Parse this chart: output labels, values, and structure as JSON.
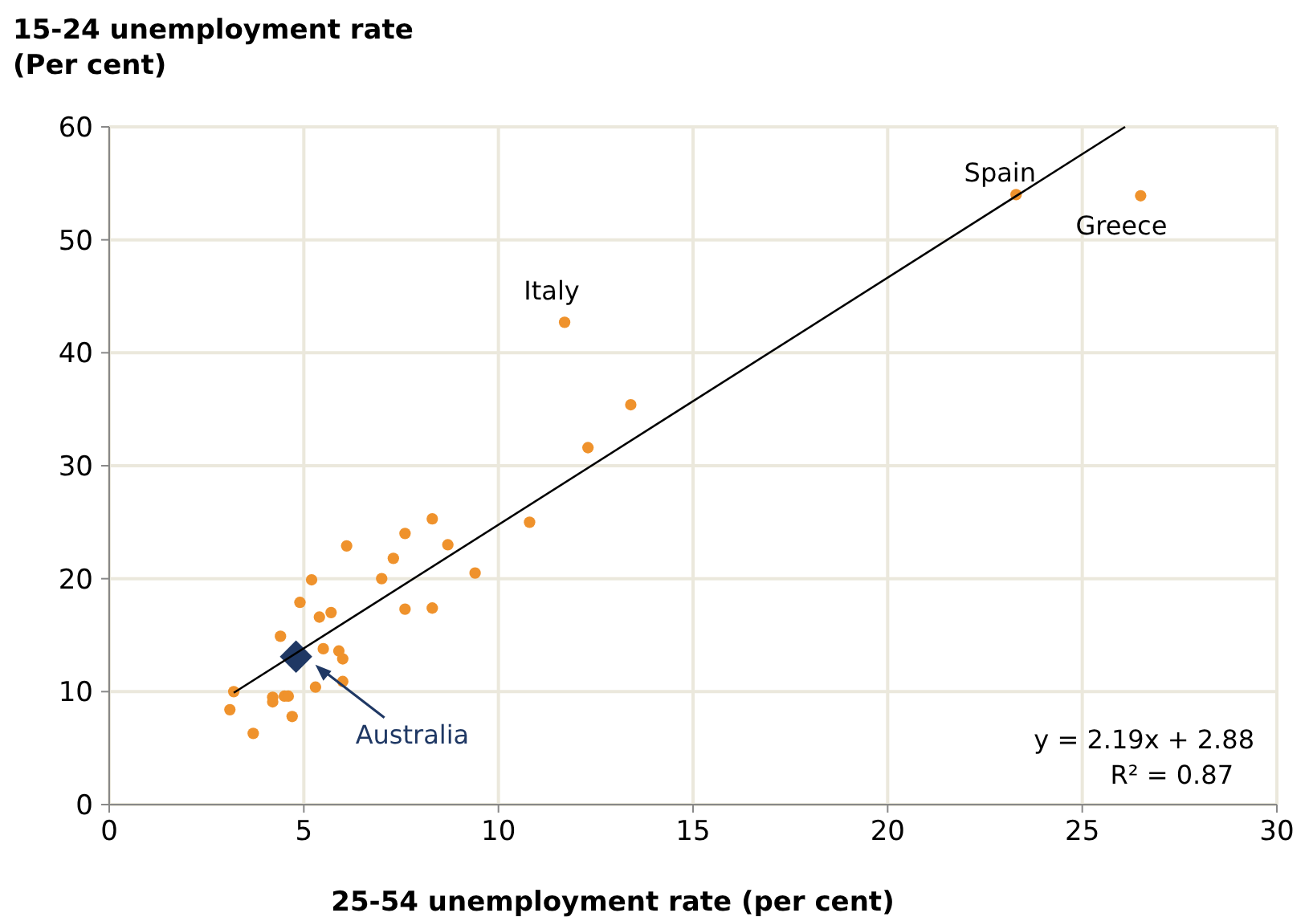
{
  "chart_data": {
    "type": "scatter",
    "ylabel": "15-24 unemployment rate\n(Per cent)",
    "xlabel": "25-54 unemployment rate (per cent)",
    "xlim": [
      0,
      30
    ],
    "xticks": [
      0,
      5,
      10,
      15,
      20,
      25,
      30
    ],
    "ylim": [
      0,
      60
    ],
    "yticks": [
      0,
      10,
      20,
      30,
      40,
      50,
      60
    ],
    "grid": true,
    "series": [
      {
        "color": "#ef922c",
        "marker": "circle",
        "x": [
          3.2,
          3.1,
          3.7,
          4.4,
          4.2,
          4.2,
          4.5,
          4.6,
          4.7,
          4.9,
          5.2,
          5.4,
          5.7,
          5.5,
          5.9,
          6.0,
          6.0,
          5.3,
          6.1,
          7.0,
          7.3,
          7.6,
          8.3,
          8.7,
          7.6,
          8.3,
          9.4,
          10.8,
          11.7,
          13.4,
          12.3,
          23.3,
          26.5
        ],
        "values": [
          10.0,
          8.4,
          6.3,
          14.9,
          9.5,
          9.1,
          9.6,
          9.6,
          7.8,
          17.9,
          19.9,
          16.6,
          17.0,
          13.8,
          13.6,
          12.9,
          10.9,
          10.4,
          22.9,
          20.0,
          21.8,
          24.0,
          25.3,
          23.0,
          17.3,
          17.4,
          20.5,
          25.0,
          42.7,
          35.4,
          31.6,
          54.0,
          53.9
        ]
      },
      {
        "name": "Australia",
        "color": "#1f3864",
        "marker": "diamond",
        "x": [
          4.8
        ],
        "values": [
          13.1
        ]
      },
      {
        "type": "line",
        "color": "#000000",
        "marker": "none",
        "line_style": "solid",
        "x": [
          3.2,
          26.1
        ],
        "values": [
          9.9,
          60.0
        ]
      }
    ],
    "annotations": [
      {
        "text": "Italy",
        "x": 11.7,
        "y": 42.7
      },
      {
        "text": "Spain",
        "x": 23.3,
        "y": 54.0
      },
      {
        "text": "Greece",
        "x": 26.5,
        "y": 53.9
      },
      "y = 2.19x + 2.88",
      "R² = 0.87"
    ]
  }
}
